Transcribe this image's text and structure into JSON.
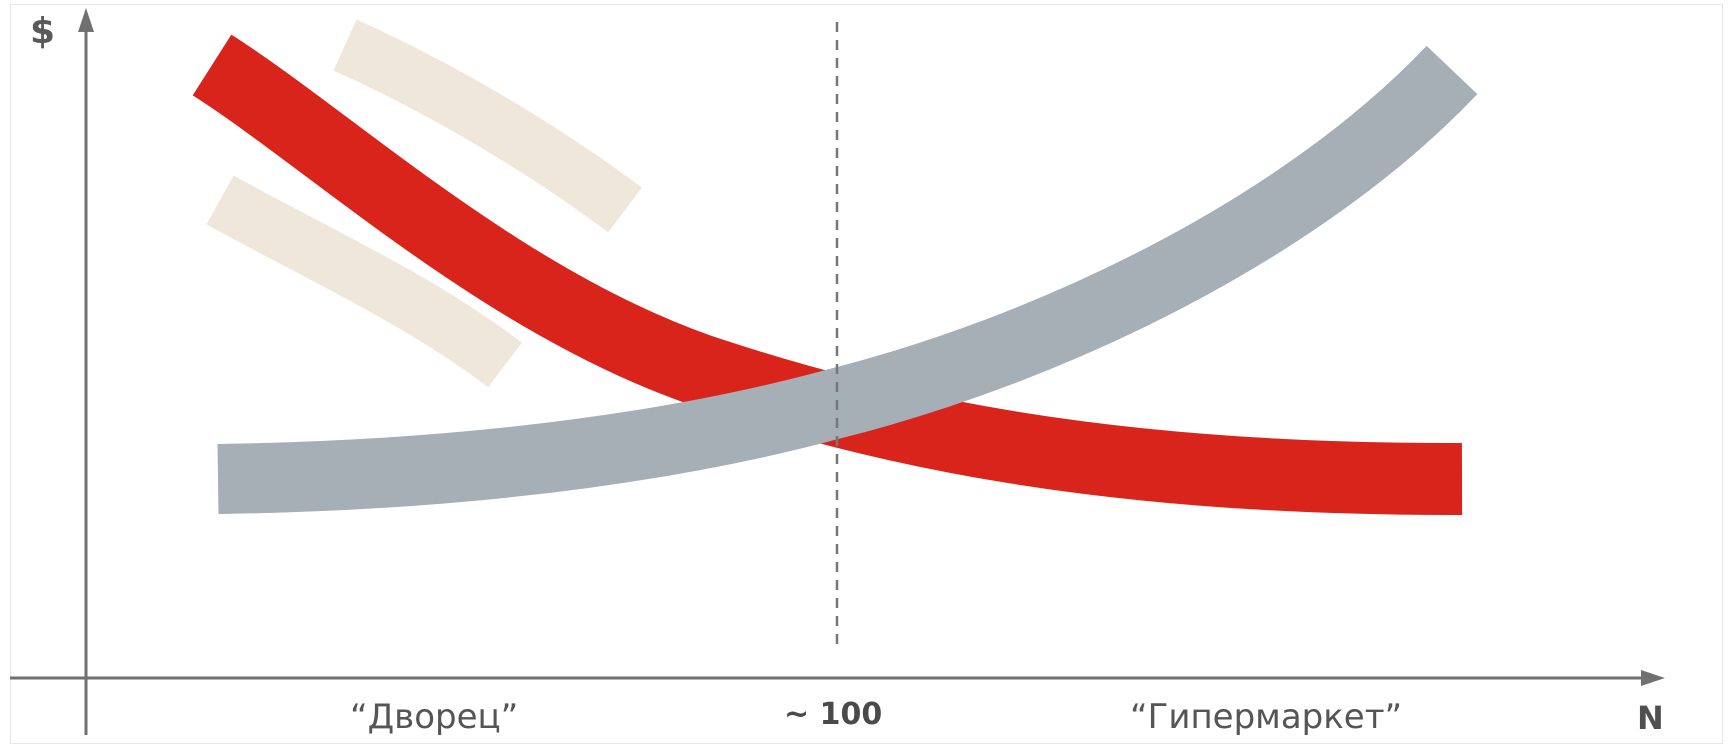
{
  "axes": {
    "y_label": "$",
    "x_label": "N"
  },
  "captions": {
    "left": "“Дворец”",
    "middle": "~ 100",
    "right": "“Гипермаркет”"
  },
  "colors": {
    "red_curve": "#d9241c",
    "grey_curve": "#a6aeb6",
    "beige_band": "#efe8da",
    "axis": "#707070",
    "divider": "#777777"
  }
}
